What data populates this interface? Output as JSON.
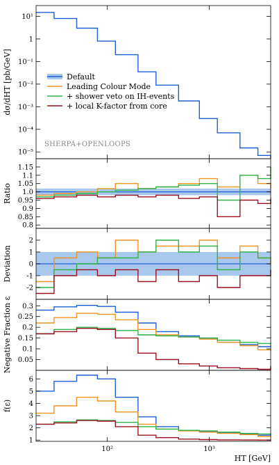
{
  "chart_data": [
    {
      "type": "line",
      "panel": "main",
      "xlabel": "",
      "ylabel": "dσ/dHT [pb/GeV]",
      "x_scale": "log",
      "y_scale": "log",
      "xlim": [
        20,
        4000
      ],
      "ylim": [
        5e-06,
        30
      ],
      "y_ticks": [
        {
          "v": 10,
          "label": "10¹"
        },
        {
          "v": 1,
          "label": "1"
        },
        {
          "v": 0.1,
          "label": "10⁻¹"
        },
        {
          "v": 0.01,
          "label": "10⁻²"
        },
        {
          "v": 0.001,
          "label": "10⁻³"
        },
        {
          "v": 0.0001,
          "label": "10⁻⁴"
        },
        {
          "v": 1e-05,
          "label": "10⁻⁵"
        }
      ],
      "watermark": "SHERPA+OPENLOOPS",
      "legend": [
        {
          "name": "Default",
          "color": "#1f5fd6",
          "band": "#a8c8ee"
        },
        {
          "name": "Leading Colour Mode",
          "color": "#f29320"
        },
        {
          "name": "+ shower veto on IH-events",
          "color": "#2cb44a"
        },
        {
          "name": "+ local K-factor from core",
          "color": "#9c1020"
        }
      ],
      "legend_position": "center-left",
      "x": [
        20,
        30,
        50,
        80,
        120,
        200,
        300,
        500,
        800,
        1200,
        2000,
        3000,
        4000
      ],
      "series": [
        {
          "name": "Default",
          "values": [
            15,
            8,
            3,
            0.8,
            0.2,
            0.035,
            0.009,
            0.0018,
            0.0003,
            7e-05,
            1.5e-05,
            7e-06,
            5e-06
          ]
        }
      ]
    },
    {
      "type": "line",
      "panel": "ratio",
      "ylabel": "Ratio",
      "x_scale": "log",
      "xlim": [
        20,
        4000
      ],
      "ylim": [
        0.78,
        1.2
      ],
      "y_ticks": [
        {
          "v": 0.8,
          "label": "0.8"
        },
        {
          "v": 0.85,
          "label": "0.85"
        },
        {
          "v": 0.9,
          "label": "0.9"
        },
        {
          "v": 0.95,
          "label": "0.95"
        },
        {
          "v": 1.0,
          "label": "1.0"
        },
        {
          "v": 1.05,
          "label": "1.05"
        },
        {
          "v": 1.1,
          "label": "1.1"
        },
        {
          "v": 1.15,
          "label": "1.15"
        }
      ],
      "x": [
        20,
        30,
        50,
        80,
        120,
        200,
        300,
        500,
        800,
        1200,
        2000,
        3000,
        4000
      ],
      "series": [
        {
          "name": "Leading Colour Mode",
          "values": [
            0.98,
            0.99,
            1.0,
            1.02,
            1.05,
            1.02,
            1.03,
            1.05,
            1.08,
            1.03,
            1.1,
            1.05,
            1.02
          ]
        },
        {
          "name": "+ shower veto on IH-events",
          "values": [
            0.97,
            0.98,
            0.99,
            1.0,
            1.01,
            1.02,
            1.03,
            1.04,
            1.05,
            0.95,
            1.1,
            1.08,
            1.15
          ]
        },
        {
          "name": "+ local K-factor from core",
          "values": [
            0.96,
            0.97,
            0.98,
            0.97,
            0.98,
            0.97,
            0.98,
            0.96,
            0.97,
            0.85,
            0.95,
            0.93,
            0.96
          ]
        }
      ]
    },
    {
      "type": "line",
      "panel": "deviation",
      "ylabel": "Deviation",
      "x_scale": "log",
      "xlim": [
        20,
        4000
      ],
      "ylim": [
        -3,
        3
      ],
      "y_ticks": [
        {
          "v": -2,
          "label": "-2"
        },
        {
          "v": -1,
          "label": "-1"
        },
        {
          "v": 0,
          "label": "0"
        },
        {
          "v": 1,
          "label": "1"
        },
        {
          "v": 2,
          "label": "2"
        }
      ],
      "x": [
        20,
        30,
        50,
        80,
        120,
        200,
        300,
        500,
        800,
        1200,
        2000,
        3000,
        4000
      ],
      "series": [
        {
          "name": "Leading Colour Mode",
          "values": [
            -1.5,
            0.5,
            1.0,
            0.5,
            2.0,
            1.0,
            1.5,
            1.5,
            2.0,
            0.5,
            1.5,
            0.5,
            0.0
          ]
        },
        {
          "name": "+ shower veto on IH-events",
          "values": [
            -2.0,
            -0.5,
            0.0,
            0.5,
            0.5,
            1.0,
            2.0,
            1.0,
            1.5,
            -0.5,
            1.0,
            0.5,
            0.5
          ]
        },
        {
          "name": "+ local K-factor from core",
          "values": [
            -2.5,
            -1.0,
            -0.5,
            -1.0,
            -0.5,
            -1.5,
            -0.5,
            -1.5,
            -1.0,
            -2.0,
            -1.0,
            -1.0,
            -0.5
          ]
        }
      ]
    },
    {
      "type": "line",
      "panel": "negative_fraction",
      "ylabel": "Negative Fraction ε",
      "x_scale": "log",
      "xlim": [
        20,
        4000
      ],
      "ylim": [
        0,
        0.33
      ],
      "y_ticks": [
        {
          "v": 0.05,
          "label": "0.05"
        },
        {
          "v": 0.1,
          "label": "0.1"
        },
        {
          "v": 0.15,
          "label": "0.15"
        },
        {
          "v": 0.2,
          "label": "0.2"
        },
        {
          "v": 0.25,
          "label": "0.25"
        },
        {
          "v": 0.3,
          "label": "0.3"
        }
      ],
      "x": [
        20,
        30,
        50,
        80,
        120,
        200,
        300,
        500,
        800,
        1200,
        2000,
        3000,
        4000
      ],
      "series": [
        {
          "name": "Default",
          "values": [
            0.28,
            0.295,
            0.302,
            0.297,
            0.27,
            0.22,
            0.18,
            0.16,
            0.15,
            0.13,
            0.12,
            0.11,
            0.115
          ]
        },
        {
          "name": "Leading Colour Mode",
          "values": [
            0.22,
            0.245,
            0.265,
            0.26,
            0.235,
            0.19,
            0.165,
            0.155,
            0.145,
            0.13,
            0.115,
            0.095,
            0.09
          ]
        },
        {
          "name": "+ shower veto on IH-events",
          "values": [
            0.17,
            0.19,
            0.2,
            0.195,
            0.185,
            0.165,
            0.16,
            0.155,
            0.15,
            0.14,
            0.13,
            0.125,
            0.12
          ]
        },
        {
          "name": "+ local K-factor from core",
          "values": [
            0.17,
            0.18,
            0.195,
            0.19,
            0.15,
            0.08,
            0.05,
            0.03,
            0.02,
            0.012,
            0.008,
            0.005,
            0.02
          ]
        }
      ]
    },
    {
      "type": "line",
      "panel": "f_epsilon",
      "ylabel": "f(ε)",
      "x_scale": "log",
      "xlim": [
        20,
        4000
      ],
      "ylim": [
        0.9,
        6.7
      ],
      "y_ticks": [
        {
          "v": 1,
          "label": "1"
        },
        {
          "v": 2,
          "label": "2"
        },
        {
          "v": 3,
          "label": "3"
        },
        {
          "v": 4,
          "label": "4"
        },
        {
          "v": 5,
          "label": "5"
        },
        {
          "v": 6,
          "label": "6"
        }
      ],
      "x_ticks": [
        {
          "v": 100,
          "label": "10²"
        },
        {
          "v": 1000,
          "label": "10³"
        }
      ],
      "xlabel": "HT [GeV]",
      "x": [
        20,
        30,
        50,
        80,
        120,
        200,
        300,
        500,
        800,
        1200,
        2000,
        3000,
        4000
      ],
      "series": [
        {
          "name": "Default",
          "values": [
            5.0,
            5.8,
            6.3,
            6.0,
            4.5,
            2.9,
            2.1,
            1.8,
            1.7,
            1.6,
            1.5,
            1.4,
            1.45
          ]
        },
        {
          "name": "Leading Colour Mode",
          "values": [
            3.2,
            3.8,
            4.5,
            4.2,
            3.3,
            2.3,
            1.9,
            1.75,
            1.65,
            1.55,
            1.45,
            1.3,
            1.3
          ]
        },
        {
          "name": "+ shower veto on IH-events",
          "values": [
            2.3,
            2.5,
            2.65,
            2.6,
            2.45,
            2.1,
            1.9,
            1.8,
            1.75,
            1.65,
            1.55,
            1.5,
            1.45
          ]
        },
        {
          "name": "+ local K-factor from core",
          "values": [
            2.3,
            2.4,
            2.6,
            2.55,
            2.1,
            1.4,
            1.2,
            1.08,
            1.04,
            1.02,
            1.01,
            1.0,
            1.05
          ]
        }
      ]
    }
  ]
}
